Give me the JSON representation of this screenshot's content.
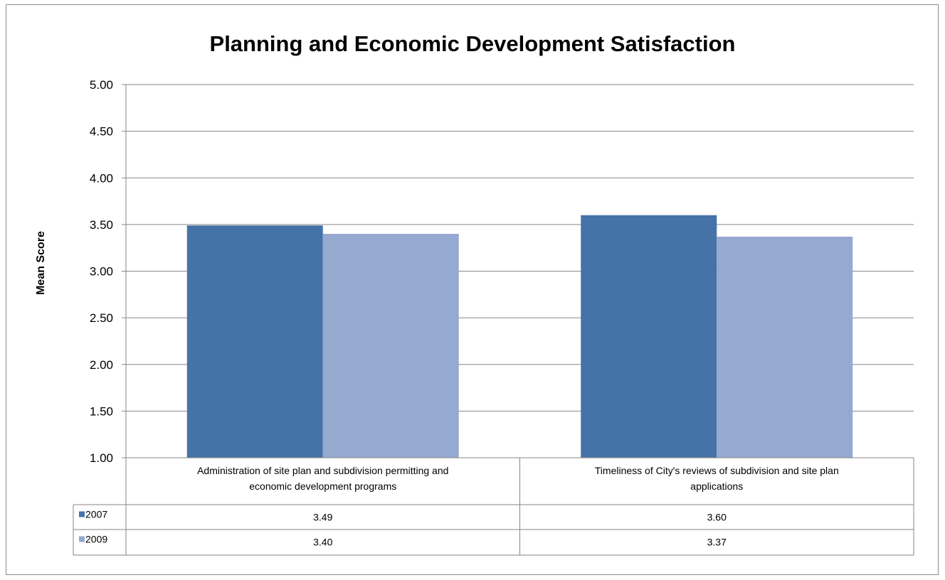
{
  "chart_data": {
    "type": "bar",
    "title": "Planning and Economic Development Satisfaction",
    "ylabel": "Mean Score",
    "xlabel": "",
    "ylim": [
      1.0,
      5.0
    ],
    "yticks": [
      "1.00",
      "1.50",
      "2.00",
      "2.50",
      "3.00",
      "3.50",
      "4.00",
      "4.50",
      "5.00"
    ],
    "grid": true,
    "legend": "data-table",
    "categories": [
      [
        "Administration of site plan and subdivision permitting and",
        "economic development programs"
      ],
      [
        "Timeliness of City's reviews of subdivision and site plan",
        "applications"
      ]
    ],
    "series": [
      {
        "name": "2007",
        "values": [
          3.49,
          3.6
        ],
        "labels": [
          "3.49",
          "3.60"
        ],
        "color": "#4573a7"
      },
      {
        "name": "2009",
        "values": [
          3.4,
          3.37
        ],
        "labels": [
          "3.40",
          "3.37"
        ],
        "color": "#95a9d1"
      }
    ]
  }
}
